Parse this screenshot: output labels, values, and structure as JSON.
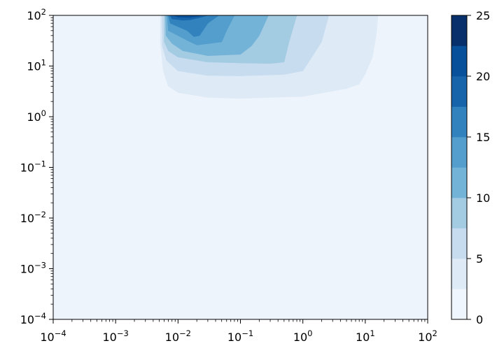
{
  "chart_data": {
    "type": "heatmap",
    "subtype": "filled-contour",
    "title": "",
    "xlabel": "",
    "ylabel": "",
    "xscale": "log",
    "yscale": "log",
    "xlim": [
      0.0001,
      100
    ],
    "ylim": [
      0.0001,
      100
    ],
    "xticks": [
      {
        "value": 0.0001,
        "base": "10",
        "exp": "−4"
      },
      {
        "value": 0.001,
        "base": "10",
        "exp": "−3"
      },
      {
        "value": 0.01,
        "base": "10",
        "exp": "−2"
      },
      {
        "value": 0.1,
        "base": "10",
        "exp": "−1"
      },
      {
        "value": 1,
        "base": "10",
        "exp": "0"
      },
      {
        "value": 10,
        "base": "10",
        "exp": "1"
      },
      {
        "value": 100,
        "base": "10",
        "exp": "2"
      }
    ],
    "yticks": [
      {
        "value": 0.0001,
        "base": "10",
        "exp": "−4"
      },
      {
        "value": 0.001,
        "base": "10",
        "exp": "−3"
      },
      {
        "value": 0.01,
        "base": "10",
        "exp": "−2"
      },
      {
        "value": 0.1,
        "base": "10",
        "exp": "−1"
      },
      {
        "value": 1,
        "base": "10",
        "exp": "0"
      },
      {
        "value": 10,
        "base": "10",
        "exp": "1"
      },
      {
        "value": 100,
        "base": "10",
        "exp": "2"
      }
    ],
    "colormap": "Blues",
    "levels": [
      0,
      2.5,
      5,
      7.5,
      10,
      12.5,
      15,
      17.5,
      20,
      22.5,
      25
    ],
    "level_colors": [
      "#f0f6fd",
      "#deebf7",
      "#c8dcf0",
      "#a3cce3",
      "#74b3d8",
      "#539ecd",
      "#3282be",
      "#1764ab",
      "#09509b",
      "#08306b"
    ],
    "colorbar": {
      "placement": "right",
      "ticks": [
        0,
        5,
        10,
        15,
        20,
        25
      ],
      "tick_labels": [
        "0",
        "5",
        "10",
        "15",
        "20",
        "25"
      ]
    },
    "background_level_color": "#eef4fc",
    "contours": [
      {
        "level_min": 2.5,
        "boundary": [
          [
            0.0052,
            100
          ],
          [
            0.0052,
            30
          ],
          [
            0.0058,
            8
          ],
          [
            0.007,
            4
          ],
          [
            0.01,
            3
          ],
          [
            0.03,
            2.4
          ],
          [
            0.1,
            2.3
          ],
          [
            1,
            2.5
          ],
          [
            5,
            3.6
          ],
          [
            8,
            4.4
          ],
          [
            10,
            7
          ],
          [
            13,
            15
          ],
          [
            15,
            40
          ],
          [
            16,
            100
          ]
        ]
      },
      {
        "level_min": 5,
        "boundary": [
          [
            0.0055,
            100
          ],
          [
            0.0056,
            25
          ],
          [
            0.0065,
            13
          ],
          [
            0.01,
            8
          ],
          [
            0.03,
            6.5
          ],
          [
            0.1,
            6.4
          ],
          [
            0.5,
            6.8
          ],
          [
            1,
            8
          ],
          [
            2,
            30
          ],
          [
            2.6,
            100
          ]
        ]
      },
      {
        "level_min": 7.5,
        "boundary": [
          [
            0.006,
            100
          ],
          [
            0.006,
            30
          ],
          [
            0.007,
            20
          ],
          [
            0.01,
            15
          ],
          [
            0.03,
            12
          ],
          [
            0.1,
            11.5
          ],
          [
            0.3,
            11.2
          ],
          [
            0.5,
            12
          ],
          [
            0.6,
            30
          ],
          [
            0.8,
            100
          ]
        ]
      },
      {
        "level_min": 10,
        "boundary": [
          [
            0.0063,
            100
          ],
          [
            0.0064,
            40
          ],
          [
            0.008,
            28
          ],
          [
            0.012,
            20
          ],
          [
            0.03,
            16
          ],
          [
            0.1,
            17
          ],
          [
            0.15,
            25
          ],
          [
            0.2,
            40
          ],
          [
            0.28,
            100
          ]
        ]
      },
      {
        "level_min": 12.5,
        "boundary": [
          [
            0.0067,
            100
          ],
          [
            0.007,
            50
          ],
          [
            0.01,
            40
          ],
          [
            0.014,
            32
          ],
          [
            0.02,
            26
          ],
          [
            0.05,
            30
          ],
          [
            0.06,
            50
          ],
          [
            0.08,
            100
          ]
        ]
      },
      {
        "level_min": 15,
        "boundary": [
          [
            0.007,
            100
          ],
          [
            0.0075,
            70
          ],
          [
            0.01,
            60
          ],
          [
            0.014,
            50
          ],
          [
            0.018,
            38
          ],
          [
            0.022,
            40
          ],
          [
            0.03,
            70
          ],
          [
            0.045,
            100
          ]
        ]
      },
      {
        "level_min": 17.5,
        "boundary": [
          [
            0.0075,
            100
          ],
          [
            0.008,
            85
          ],
          [
            0.012,
            80
          ],
          [
            0.016,
            82
          ],
          [
            0.022,
            90
          ],
          [
            0.03,
            100
          ]
        ]
      },
      {
        "level_min": 20,
        "boundary": [
          [
            0.0085,
            100
          ],
          [
            0.01,
            92
          ],
          [
            0.015,
            90
          ],
          [
            0.02,
            95
          ],
          [
            0.024,
            100
          ]
        ]
      }
    ]
  }
}
